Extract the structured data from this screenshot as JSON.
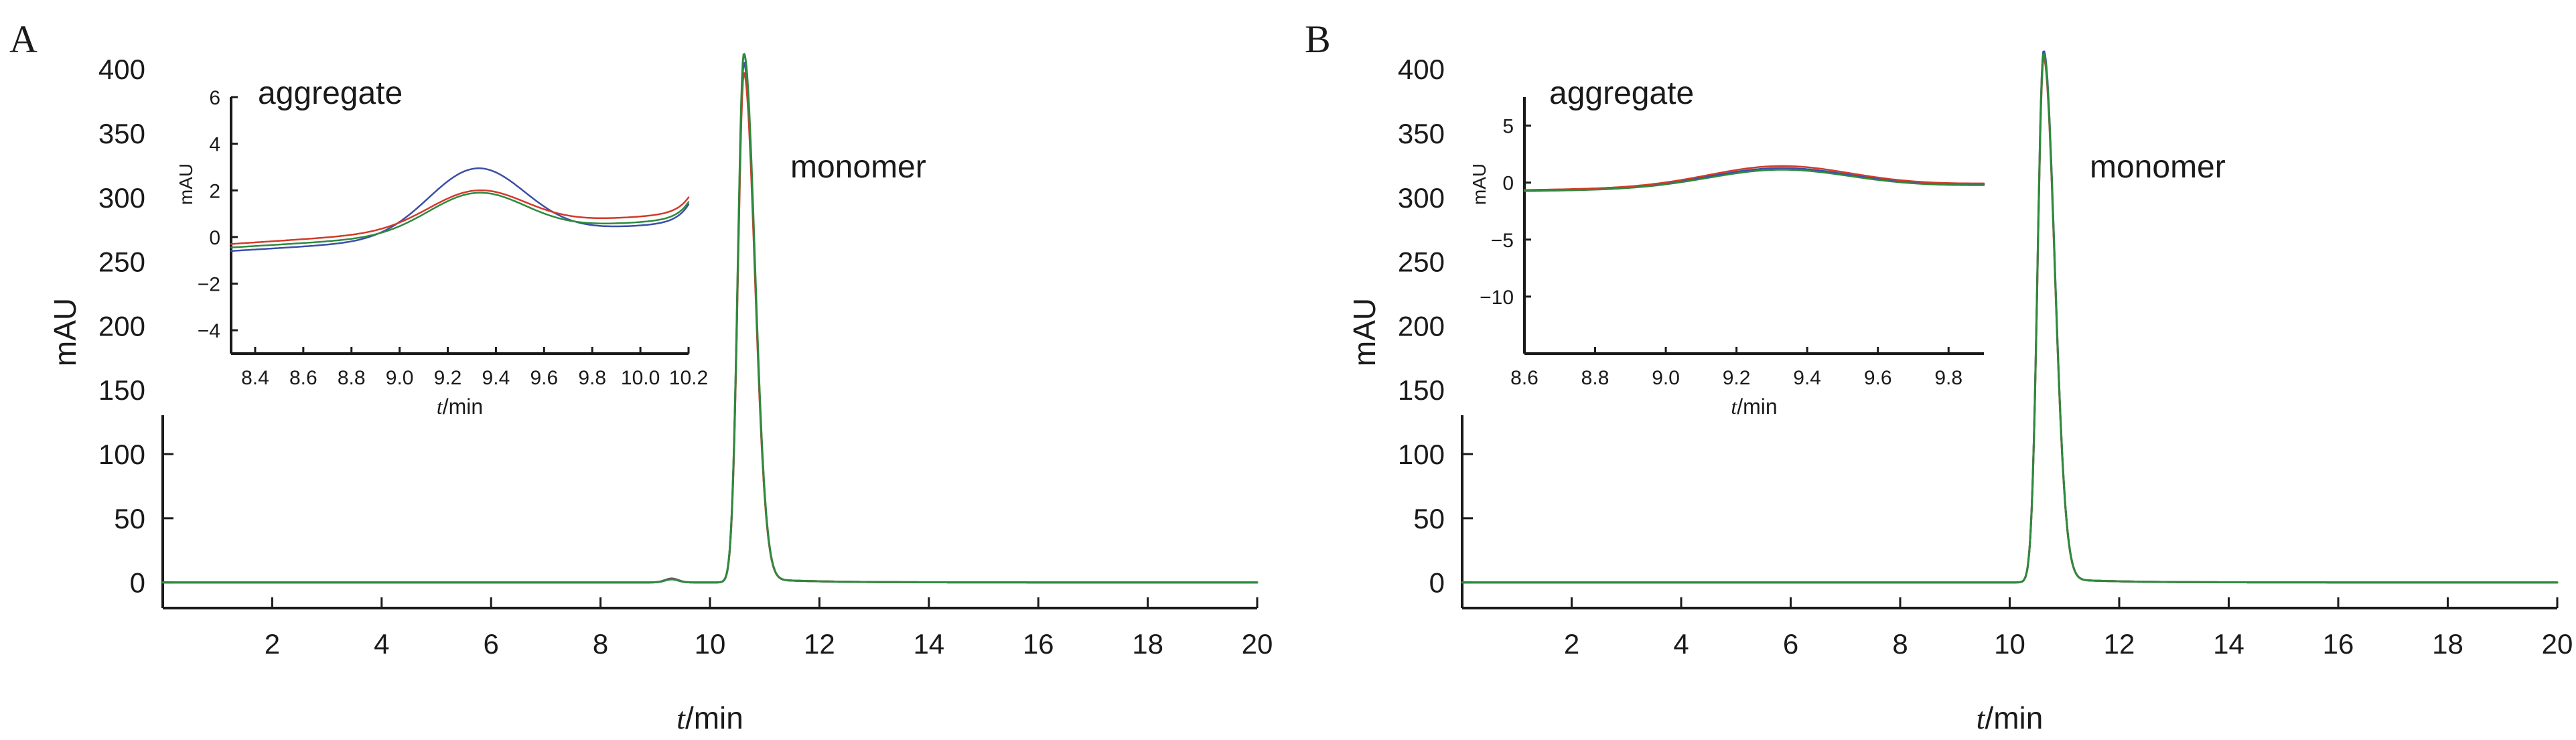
{
  "chart_data": [
    {
      "panel": "A",
      "type": "line",
      "xlabel_italic": "t",
      "xlabel_rest": "/min",
      "ylabel": "mAU",
      "xlim": [
        0,
        20
      ],
      "ylim": [
        -20,
        410
      ],
      "xticks": [
        2,
        4,
        6,
        8,
        10,
        12,
        14,
        16,
        18,
        20
      ],
      "yticks": [
        0,
        50,
        100,
        150,
        200,
        250,
        300,
        350,
        400
      ],
      "annotations": [
        {
          "text": "monomer",
          "x": 11.5,
          "y": 330
        }
      ],
      "series": [
        {
          "color": "#3a4fa8",
          "peak": 405,
          "side": 3.0,
          "side_x": 9.3
        },
        {
          "color": "#d23a2a",
          "peak": 397,
          "side": 2.6,
          "side_x": 9.3
        },
        {
          "color": "#2e8a3e",
          "peak": 412,
          "side": 2.4,
          "side_x": 9.3
        }
      ],
      "inset": {
        "title": "aggregate",
        "xlabel_italic": "t",
        "xlabel_rest": "/min",
        "ylabel": "mAU",
        "xlim": [
          8.3,
          10.2
        ],
        "ylim": [
          -5,
          6
        ],
        "xticks": [
          8.4,
          8.6,
          8.8,
          9.0,
          9.2,
          9.4,
          9.6,
          9.8,
          10.0,
          10.2
        ],
        "xtick_labels": [
          "8.4",
          "8.6",
          "8.8",
          "9.0",
          "9.2",
          "9.4",
          "9.6",
          "9.8",
          "10.0",
          "10.2"
        ],
        "yticks": [
          -4,
          -2,
          0,
          2,
          4,
          6
        ],
        "ytick_labels": [
          "−4",
          "−2",
          "0",
          "2",
          "4",
          "6"
        ],
        "series": [
          {
            "color": "#3a4fa8",
            "base_start": -0.6,
            "base_end": 0.6,
            "bump": 2.9,
            "end_rise": 0.8
          },
          {
            "color": "#d23a2a",
            "base_start": -0.3,
            "base_end": 1.0,
            "bump": 1.6,
            "end_rise": 0.7
          },
          {
            "color": "#2e8a3e",
            "base_start": -0.45,
            "base_end": 0.75,
            "bump": 1.7,
            "end_rise": 0.75
          }
        ]
      }
    },
    {
      "panel": "B",
      "type": "line",
      "xlabel_italic": "t",
      "xlabel_rest": "/min",
      "ylabel": "mAU",
      "xlim": [
        0,
        20
      ],
      "ylim": [
        -20,
        410
      ],
      "xticks": [
        2,
        4,
        6,
        8,
        10,
        12,
        14,
        16,
        18,
        20
      ],
      "yticks": [
        0,
        50,
        100,
        150,
        200,
        250,
        300,
        350,
        400
      ],
      "annotations": [
        {
          "text": "monomer",
          "x": 11.5,
          "y": 330
        }
      ],
      "series": [
        {
          "color": "#3a4fa8",
          "peak": 414,
          "side": 0,
          "side_x": 9.3
        },
        {
          "color": "#d23a2a",
          "peak": 409,
          "side": 0,
          "side_x": 9.3
        },
        {
          "color": "#2e8a3e",
          "peak": 412,
          "side": 0,
          "side_x": 9.3
        }
      ],
      "inset": {
        "title": "aggregate",
        "xlabel_italic": "t",
        "xlabel_rest": "/min",
        "ylabel": "mAU",
        "xlim": [
          8.6,
          9.9
        ],
        "ylim": [
          -15,
          7.5
        ],
        "xticks": [
          8.6,
          8.8,
          9.0,
          9.2,
          9.4,
          9.6,
          9.8
        ],
        "xtick_labels": [
          "8.6",
          "8.8",
          "9.0",
          "9.2",
          "9.4",
          "9.6",
          "9.8"
        ],
        "yticks": [
          -10,
          -5,
          0,
          5
        ],
        "ytick_labels": [
          "−10",
          "−5",
          "0",
          "5"
        ],
        "series": [
          {
            "color": "#3a4fa8",
            "base_start": -0.7,
            "base_end": -0.2,
            "bump": 1.7,
            "end_rise": 0
          },
          {
            "color": "#d23a2a",
            "base_start": -0.65,
            "base_end": -0.1,
            "bump": 1.8,
            "end_rise": 0
          },
          {
            "color": "#2e8a3e",
            "base_start": -0.75,
            "base_end": -0.25,
            "bump": 1.6,
            "end_rise": 0
          }
        ]
      }
    }
  ]
}
